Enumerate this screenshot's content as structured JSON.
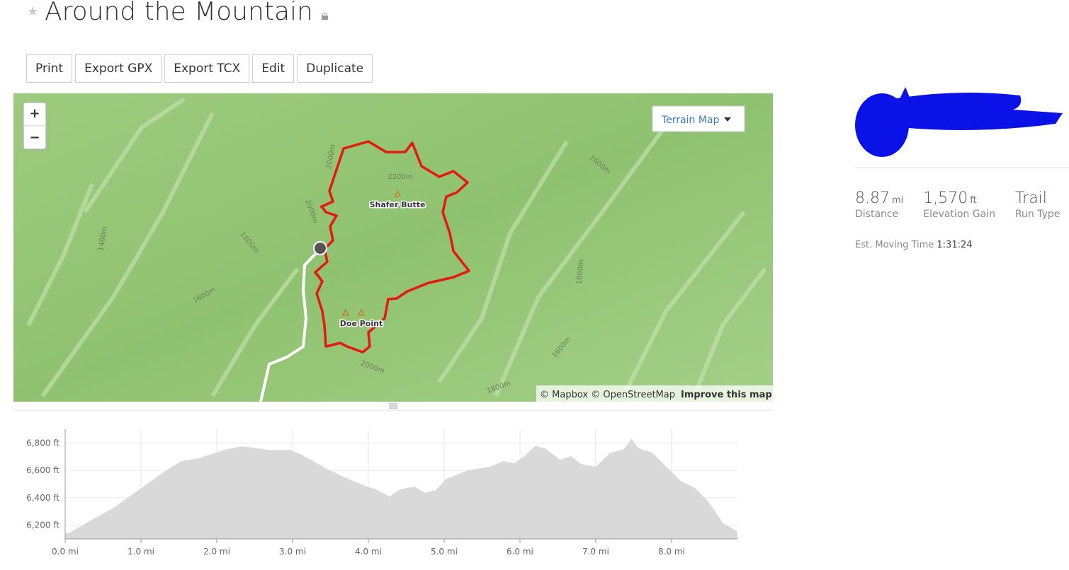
{
  "header": {
    "title": "Around the Mountain"
  },
  "buttons": [
    "Print",
    "Export GPX",
    "Export TCX",
    "Edit",
    "Duplicate"
  ],
  "map": {
    "zoom_in": "+",
    "zoom_out": "−",
    "layer_button": "Terrain Map",
    "places": [
      "Shafer Butte",
      "Doe Point"
    ],
    "contours": [
      "2000m",
      "2200m",
      "2000m",
      "1800m",
      "1400m",
      "1600m",
      "1600m",
      "1800m",
      "1600m",
      "2000m",
      "1800m"
    ],
    "attribution": "© Mapbox © OpenStreetMap",
    "improve": "Improve this map"
  },
  "stats": {
    "items": [
      {
        "value": "8.87",
        "unit": "mi",
        "label": "Distance"
      },
      {
        "value": "1,570",
        "unit": "ft",
        "label": "Elevation Gain"
      },
      {
        "value": "Trail",
        "label": "Run Type"
      }
    ],
    "moving_time_label": "Est. Moving Time",
    "moving_time": "1:31:24"
  },
  "chart_data": {
    "type": "area",
    "color": "#d9d9d9",
    "grid": true,
    "x": [
      0,
      0.07,
      0.36,
      0.64,
      1.01,
      1.29,
      1.53,
      1.76,
      1.95,
      2.13,
      2.32,
      2.51,
      2.69,
      2.97,
      3.16,
      3.44,
      3.63,
      3.91,
      4.1,
      4.28,
      4.42,
      4.61,
      4.75,
      4.89,
      5.03,
      5.31,
      5.6,
      5.78,
      5.92,
      6.06,
      6.2,
      6.34,
      6.53,
      6.67,
      6.81,
      7.0,
      7.19,
      7.37,
      7.47,
      7.56,
      7.75,
      7.93,
      8.12,
      8.31,
      8.49,
      8.68,
      8.87
    ],
    "values": [
      6138,
      6149,
      6241,
      6328,
      6472,
      6585,
      6667,
      6687,
      6723,
      6754,
      6774,
      6764,
      6749,
      6749,
      6703,
      6615,
      6564,
      6497,
      6462,
      6410,
      6462,
      6482,
      6436,
      6456,
      6538,
      6600,
      6626,
      6667,
      6651,
      6703,
      6779,
      6759,
      6677,
      6703,
      6646,
      6626,
      6728,
      6754,
      6831,
      6764,
      6728,
      6626,
      6523,
      6472,
      6369,
      6215,
      6154
    ],
    "xlim": [
      0,
      8.87
    ],
    "ylim": [
      6100,
      6900
    ],
    "xticks": [
      {
        "value": 0,
        "label": "0.0 mi"
      },
      {
        "value": 1,
        "label": "1.0 mi"
      },
      {
        "value": 2,
        "label": "2.0 mi"
      },
      {
        "value": 3,
        "label": "3.0 mi"
      },
      {
        "value": 4,
        "label": "4.0 mi"
      },
      {
        "value": 5,
        "label": "5.0 mi"
      },
      {
        "value": 6,
        "label": "6.0 mi"
      },
      {
        "value": 7,
        "label": "7.0 mi"
      },
      {
        "value": 8,
        "label": "8.0 mi"
      }
    ],
    "yticks": [
      {
        "value": 6200,
        "label": "6,200 ft"
      },
      {
        "value": 6400,
        "label": "6,400 ft"
      },
      {
        "value": 6600,
        "label": "6,600 ft"
      },
      {
        "value": 6800,
        "label": "6,800 ft"
      }
    ]
  }
}
